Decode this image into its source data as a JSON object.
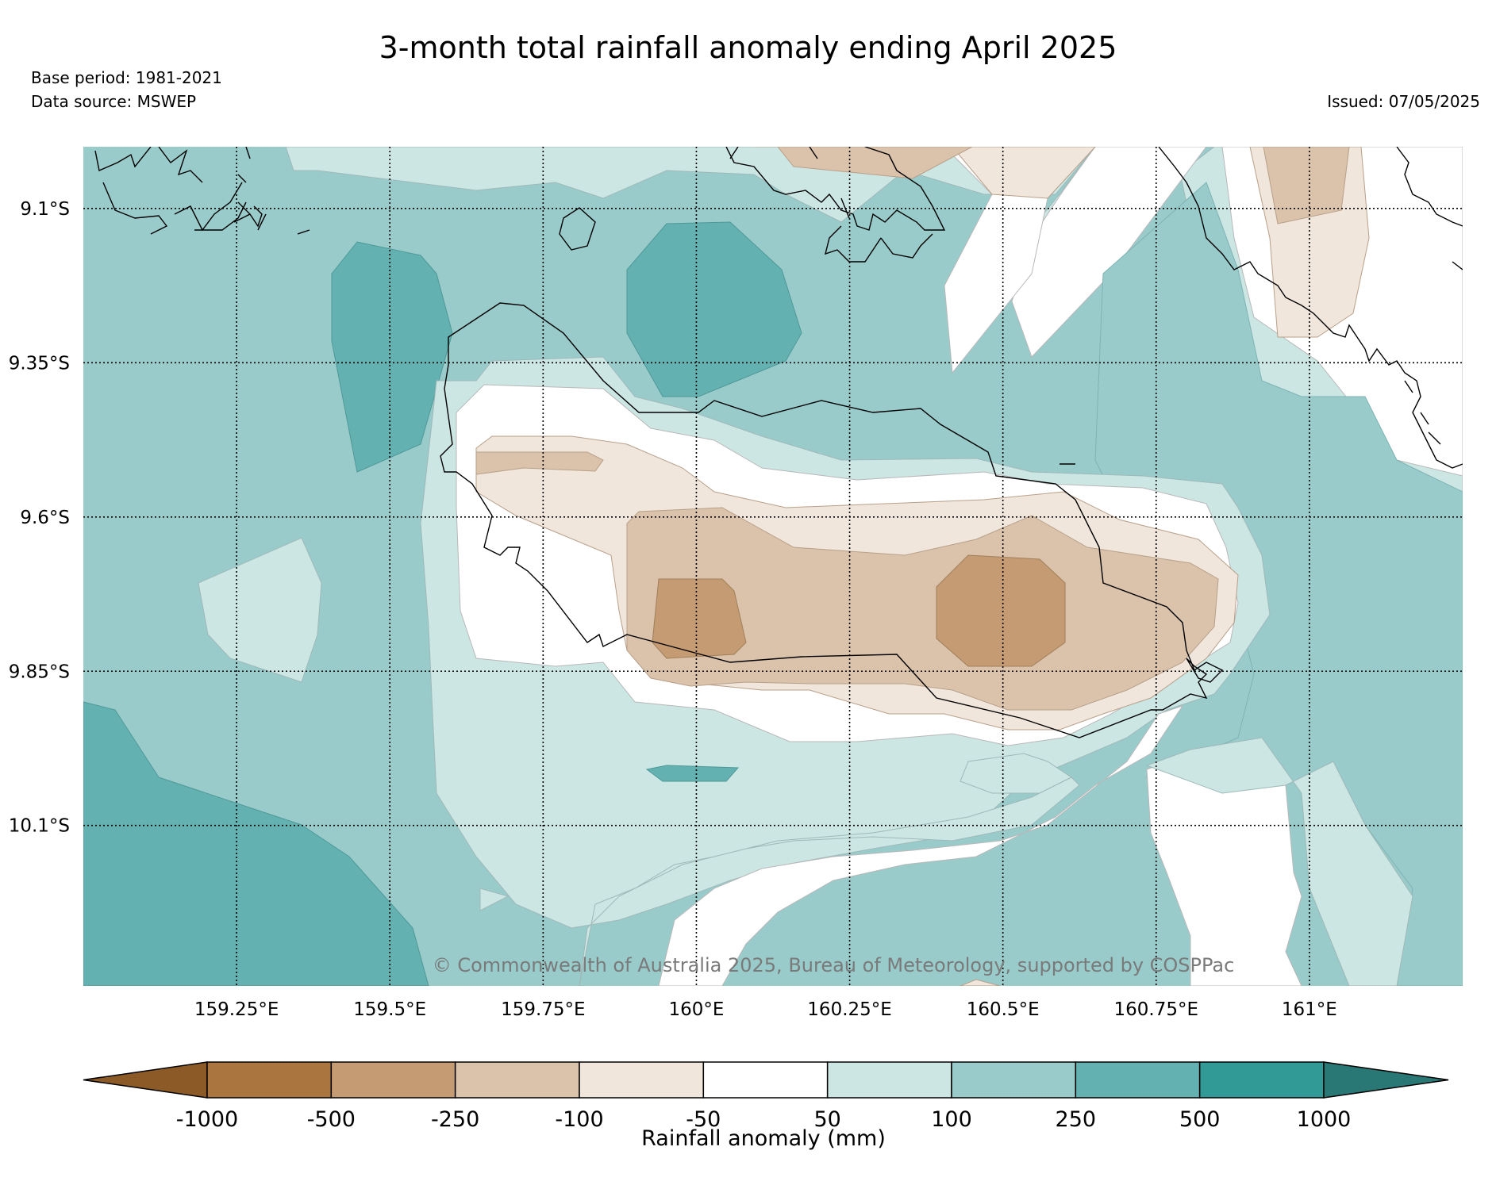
{
  "title": "3-month total rainfall anomaly ending April 2025",
  "base_period": "Base period: 1981-2021",
  "data_source": "Data source: MSWEP",
  "issued": "Issued: 07/05/2025",
  "copyright": "© Commonwealth of Australia 2025, Bureau of Meteorology, supported by COSPPac",
  "map": {
    "lon_range": [
      159.0,
      161.25
    ],
    "lat_range": [
      -9.0,
      -10.36
    ],
    "lon_ticks": [
      159.25,
      159.5,
      159.75,
      160.0,
      160.25,
      160.5,
      160.75,
      161.0
    ],
    "lon_labels": [
      "159.25°E",
      "159.5°E",
      "159.75°E",
      "160°E",
      "160.25°E",
      "160.5°E",
      "160.75°E",
      "161°E"
    ],
    "lat_ticks": [
      -9.1,
      -9.35,
      -9.6,
      -9.85,
      -10.1
    ],
    "lat_labels": [
      "9.1°S",
      "9.35°S",
      "9.6°S",
      "9.85°S",
      "10.1°S"
    ],
    "gridlines": true
  },
  "colorbar": {
    "title": "Rainfall anomaly (mm)",
    "tick_labels": [
      "-1000",
      "-500",
      "-250",
      "-100",
      "-50",
      "50",
      "100",
      "250",
      "500",
      "1000"
    ],
    "colors": [
      "#8c5a26",
      "#ab7540",
      "#c49b72",
      "#dbc2aa",
      "#f0e6dc",
      "#ffffff",
      "#cce6e4",
      "#99cbcb",
      "#64b1b1",
      "#319a97",
      "#2a7876"
    ]
  }
}
